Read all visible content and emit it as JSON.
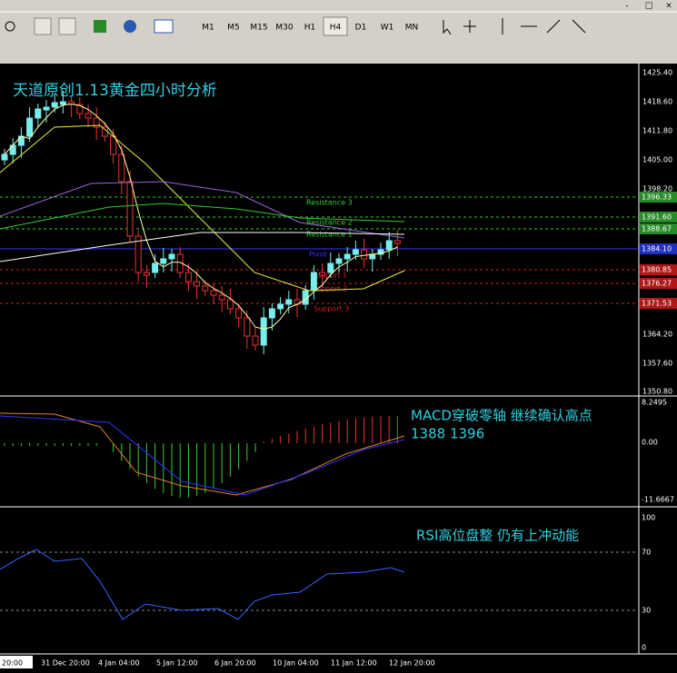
{
  "toolbar": {
    "timeframes": [
      "M1",
      "M5",
      "M15",
      "M30",
      "H1",
      "H4",
      "D1",
      "W1",
      "MN"
    ],
    "active": "H4",
    "window_controls": [
      "-",
      "□",
      "×"
    ]
  },
  "chart": {
    "title": "天道原创1.13黄金四小时分析",
    "price_labels": [
      "1425.40",
      "1418.60",
      "1411.80",
      "1405.00",
      "1398.20",
      "1364.20",
      "1357.60",
      "1350.80"
    ],
    "levels": [
      {
        "label": "Resistance 3",
        "price": "1396.33"
      },
      {
        "label": "Resistance 2",
        "price": "1391.60"
      },
      {
        "label": "Resistance 1",
        "price": "1388.67"
      },
      {
        "label": "Pivot",
        "price": "1384.10"
      },
      {
        "label": "Support 1",
        "price": "1380.85"
      },
      {
        "label": "Support 2",
        "price": "1376.27"
      },
      {
        "label": "Support 3",
        "price": "1371.53"
      }
    ]
  },
  "macd": {
    "annotation": [
      "MACD穿破零轴 继续确认高点",
      "1388   1396"
    ],
    "axis_labels": [
      "8.2495",
      "0.00",
      "-11.6667"
    ]
  },
  "rsi": {
    "annotation": "RSI高位盘整 仍有上冲动能",
    "axis_labels": [
      "100",
      "70",
      "30",
      "0"
    ]
  },
  "time_axis": [
    "20:00",
    "31 Dec 20:00",
    "4 Jan 04:00",
    "5 Jan 12:00",
    "6 Jan 20:00",
    "10 Jan 04:00",
    "11 Jan 12:00",
    "12 Jan 20:00"
  ]
}
